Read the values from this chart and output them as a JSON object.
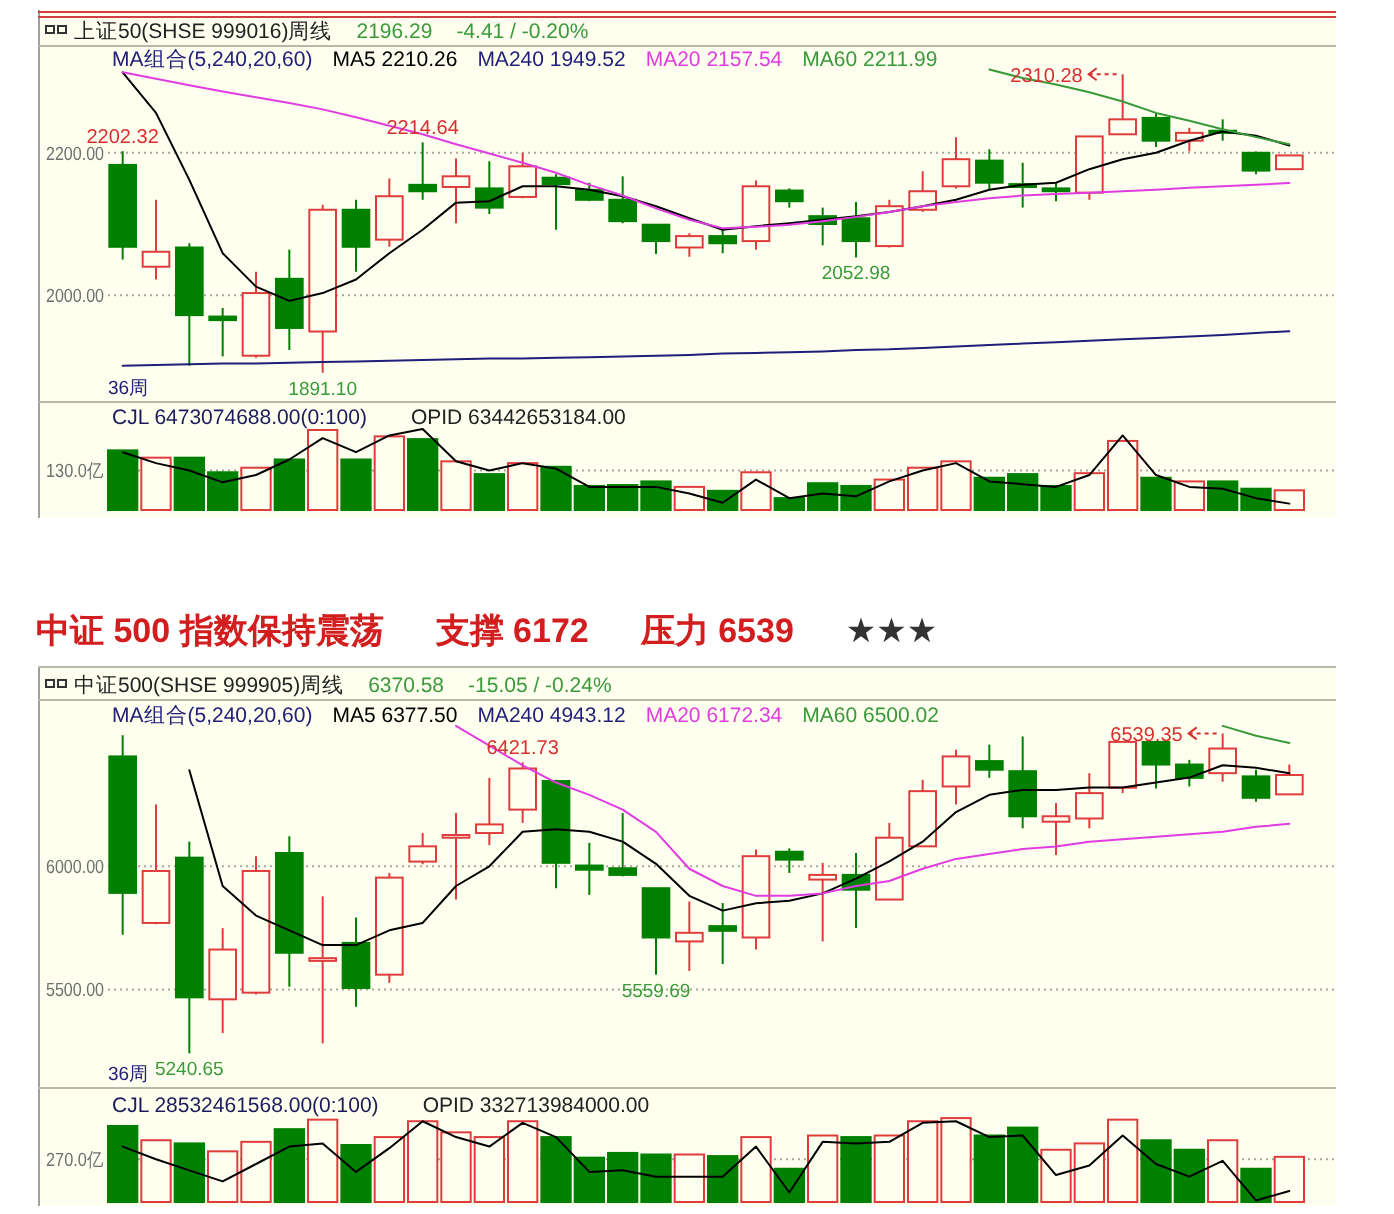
{
  "chart_data": [
    {
      "type": "candlestick",
      "title": "上证50(SHSE 999016)周线",
      "categories": [
        null,
        null,
        null,
        null,
        null,
        null,
        null,
        null,
        null,
        null,
        null,
        null,
        null,
        null,
        null,
        null,
        null,
        null,
        null,
        null,
        null,
        null,
        null,
        null,
        null,
        null,
        null,
        null,
        null,
        null,
        null,
        null,
        null,
        null,
        null,
        null
      ],
      "ohlc": [
        [
          2183,
          2202.32,
          2050,
          2068
        ],
        [
          2040,
          2134,
          2022,
          2061
        ],
        [
          2067,
          2073,
          1901,
          1972
        ],
        [
          1970,
          1982,
          1914,
          1965
        ],
        [
          1915,
          2033,
          1912,
          2003
        ],
        [
          2023,
          2064,
          1923,
          1954
        ],
        [
          1949,
          2127,
          1891.1,
          2120
        ],
        [
          2120,
          2134,
          2033,
          2068
        ],
        [
          2078,
          2164,
          2068,
          2139
        ],
        [
          2155,
          2214.64,
          2134,
          2146
        ],
        [
          2152,
          2192,
          2101,
          2167
        ],
        [
          2150,
          2188,
          2114,
          2123
        ],
        [
          2138,
          2200,
          2136,
          2181
        ],
        [
          2165,
          2170,
          2092,
          2156
        ],
        [
          2148,
          2158,
          2132,
          2134
        ],
        [
          2134,
          2167,
          2101,
          2104
        ],
        [
          2099,
          2099,
          2058,
          2076
        ],
        [
          2067,
          2087,
          2054,
          2083
        ],
        [
          2083,
          2092,
          2059,
          2073
        ],
        [
          2076,
          2161,
          2064,
          2153
        ],
        [
          2147,
          2150,
          2123,
          2132
        ],
        [
          2111,
          2123,
          2070,
          2100
        ],
        [
          2108,
          2131,
          2052.98,
          2076
        ],
        [
          2069,
          2134,
          2067,
          2125
        ],
        [
          2120,
          2174,
          2117,
          2146
        ],
        [
          2153,
          2222,
          2150,
          2191
        ],
        [
          2189,
          2205,
          2148,
          2158
        ],
        [
          2156,
          2186,
          2123,
          2152
        ],
        [
          2150,
          2158,
          2132,
          2146
        ],
        [
          2144,
          2223,
          2134,
          2223
        ],
        [
          2226,
          2310.28,
          2226,
          2247
        ],
        [
          2249,
          2256,
          2208,
          2217
        ],
        [
          2217,
          2235,
          2202,
          2228
        ],
        [
          2231,
          2247,
          2217,
          2228
        ],
        [
          2200,
          2202,
          2170,
          2175
        ],
        [
          2177,
          2196.29,
          2177,
          2196.29
        ]
      ],
      "colors": [
        "#008000",
        "#e03c3c",
        "#008000",
        "#008000",
        "#e03c3c",
        "#008000",
        "#e03c3c",
        "#008000",
        "#e03c3c",
        "#008000",
        "#e03c3c",
        "#008000",
        "#e03c3c",
        "#008000",
        "#008000",
        "#008000",
        "#008000",
        "#e03c3c",
        "#008000",
        "#e03c3c",
        "#008000",
        "#008000",
        "#008000",
        "#e03c3c",
        "#e03c3c",
        "#e03c3c",
        "#008000",
        "#008000",
        "#008000",
        "#e03c3c",
        "#e03c3c",
        "#008000",
        "#e03c3c",
        "#008000",
        "#008000",
        "#e03c3c"
      ],
      "ylim": [
        1850,
        2350
      ],
      "yticks": [
        {
          "value": 2000,
          "label": "2000.00"
        },
        {
          "value": 2200,
          "label": "2200.00"
        }
      ],
      "grid": "y",
      "tick_labels": "y",
      "legend": "top left",
      "legend_title": "MA组合(5,240,20,60)",
      "series": [
        {
          "type": "line",
          "name": "MA5 2210.26",
          "color": "#000000",
          "values": [
            2313,
            2256,
            2162,
            2059,
            2012,
            1992,
            2003,
            2022,
            2059,
            2092,
            2130,
            2132,
            2153,
            2153,
            2148,
            2139,
            2125,
            2108,
            2092,
            2097,
            2101,
            2106,
            2111,
            2117,
            2125,
            2134,
            2148,
            2155,
            2158,
            2177,
            2191,
            2200,
            2217,
            2230,
            2224,
            2210.26
          ]
        },
        {
          "type": "line",
          "name": "MA240 1949.52",
          "color": "#1f1f7a",
          "values": [
            1901,
            1902,
            1903,
            1904,
            1904,
            1905,
            1906,
            1907,
            1908,
            1909,
            1910,
            1911,
            1911,
            1912,
            1913,
            1914,
            1915,
            1916,
            1918,
            1919,
            1920,
            1921,
            1923,
            1924,
            1926,
            1928,
            1930,
            1932,
            1934,
            1936,
            1938,
            1940,
            1942,
            1944,
            1947,
            1949.52
          ]
        },
        {
          "type": "line",
          "name": "MA20 2157.54",
          "color": "#e03ce0",
          "values": [
            2313,
            2304,
            2295,
            2286,
            2278,
            2270,
            2261,
            2250,
            2238,
            2226,
            2212,
            2199,
            2186,
            2172,
            2155,
            2140,
            2122,
            2106,
            2094,
            2096,
            2099,
            2104,
            2110,
            2117,
            2125,
            2131,
            2136,
            2140,
            2142,
            2144,
            2146,
            2148,
            2151,
            2153,
            2155,
            2157.54
          ]
        },
        {
          "type": "line",
          "name": "MA60 2211.99",
          "color": "#3a9a3a",
          "values": [
            null,
            null,
            null,
            null,
            null,
            null,
            null,
            null,
            null,
            null,
            null,
            null,
            null,
            null,
            null,
            null,
            null,
            null,
            null,
            null,
            null,
            null,
            null,
            null,
            null,
            null,
            2317,
            2305,
            2296,
            2285,
            2272,
            2256,
            2245,
            2233,
            2222,
            2211.99
          ]
        }
      ],
      "annotations": [
        "2196.29",
        "-4.41 / -0.20%",
        "36周",
        {
          "text": "2202.32",
          "y": 2202.32
        },
        {
          "text": "2214.64",
          "y": 2214.64
        },
        {
          "text": "1891.10",
          "y": 1891.1
        },
        {
          "text": "2052.98",
          "y": 2052.98
        },
        {
          "text": "2310.28",
          "y": 2310.28
        }
      ]
    },
    {
      "type": "bar",
      "categories": [
        null,
        null,
        null,
        null,
        null,
        null,
        null,
        null,
        null,
        null,
        null,
        null,
        null,
        null,
        null,
        null,
        null,
        null,
        null,
        null,
        null,
        null,
        null,
        null,
        null,
        null,
        null,
        null,
        null,
        null,
        null,
        null,
        null,
        null,
        null,
        null
      ],
      "values": [
        196,
        172,
        172,
        124,
        139,
        166,
        263,
        166,
        242,
        233,
        160,
        118,
        154,
        142,
        79,
        82,
        94,
        76,
        63,
        124,
        39,
        88,
        79,
        100,
        139,
        160,
        106,
        118,
        79,
        121,
        227,
        106,
        94,
        94,
        70,
        64.73
      ],
      "colors": [
        "#008000",
        "#e03c3c",
        "#008000",
        "#008000",
        "#e03c3c",
        "#008000",
        "#e03c3c",
        "#008000",
        "#e03c3c",
        "#008000",
        "#e03c3c",
        "#008000",
        "#e03c3c",
        "#008000",
        "#008000",
        "#008000",
        "#008000",
        "#e03c3c",
        "#008000",
        "#e03c3c",
        "#008000",
        "#008000",
        "#008000",
        "#e03c3c",
        "#e03c3c",
        "#e03c3c",
        "#008000",
        "#008000",
        "#008000",
        "#e03c3c",
        "#e03c3c",
        "#008000",
        "#e03c3c",
        "#008000",
        "#008000",
        "#e03c3c"
      ],
      "ylim": [
        0,
        355
      ],
      "yticks": [
        {
          "value": 130,
          "label": "130.0亿"
        }
      ],
      "grid": "y",
      "tick_labels": "y",
      "series": [
        {
          "type": "line",
          "color": "#000000",
          "values": [
            190,
            154,
            130,
            91,
            115,
            166,
            236,
            190,
            245,
            266,
            160,
            130,
            154,
            136,
            76,
            76,
            76,
            54,
            24,
            100,
            39,
            54,
            45,
            94,
            130,
            154,
            94,
            85,
            76,
            115,
            245,
            115,
            76,
            70,
            39,
            21
          ]
        }
      ],
      "annotations": [
        "CJL 6473074688.00(0:100)",
        "OPID 63442653184.00"
      ]
    },
    {
      "type": "candlestick",
      "title": "中证 500 指数保持震荡",
      "subtitle": "中证500(SHSE 999905)周线",
      "categories": [
        null,
        null,
        null,
        null,
        null,
        null,
        null,
        null,
        null,
        null,
        null,
        null,
        null,
        null,
        null,
        null,
        null,
        null,
        null,
        null,
        null,
        null,
        null,
        null,
        null,
        null,
        null,
        null,
        null,
        null,
        null,
        null,
        null,
        null,
        null,
        null
      ],
      "ohlc": [
        [
          6446,
          6532,
          5722,
          5892
        ],
        [
          5770,
          6251,
          5765,
          5981
        ],
        [
          6035,
          6100,
          5240.65,
          5468
        ],
        [
          5460,
          5749,
          5323,
          5662
        ],
        [
          5487,
          6041,
          5480,
          5981
        ],
        [
          6054,
          6122,
          5511,
          5649
        ],
        [
          5616,
          5878,
          5281,
          5627
        ],
        [
          5689,
          5792,
          5430,
          5506
        ],
        [
          5560,
          5973,
          5527,
          5954
        ],
        [
          6019,
          6135,
          6008,
          6081
        ],
        [
          6116,
          6216,
          5865,
          6127
        ],
        [
          6135,
          6359,
          6086,
          6170
        ],
        [
          6230,
          6421.73,
          6176,
          6397
        ],
        [
          6346,
          6351,
          5911,
          6014
        ],
        [
          6003,
          6095,
          5884,
          5986
        ],
        [
          5992,
          6216,
          5959,
          5965
        ],
        [
          5911,
          5911,
          5559.69,
          5711
        ],
        [
          5695,
          5857,
          5575,
          5730
        ],
        [
          5757,
          5851,
          5603,
          5738
        ],
        [
          5711,
          6068,
          5662,
          6041
        ],
        [
          6059,
          6073,
          5973,
          6027
        ],
        [
          5946,
          6014,
          5695,
          5965
        ],
        [
          5965,
          6054,
          5749,
          5905
        ],
        [
          5865,
          6176,
          5865,
          6116
        ],
        [
          6081,
          6351,
          6081,
          6305
        ],
        [
          6324,
          6473,
          6251,
          6446
        ],
        [
          6427,
          6494,
          6359,
          6392
        ],
        [
          6386,
          6527,
          6154,
          6203
        ],
        [
          6181,
          6257,
          6046,
          6203
        ],
        [
          6194,
          6378,
          6154,
          6297
        ],
        [
          6319,
          6505,
          6297,
          6505
        ],
        [
          6505,
          6505,
          6316,
          6413
        ],
        [
          6413,
          6432,
          6324,
          6359
        ],
        [
          6378,
          6539.35,
          6343,
          6478
        ],
        [
          6365,
          6392,
          6262,
          6278
        ],
        [
          6292,
          6413,
          6292,
          6370.58
        ]
      ],
      "colors": [
        "#008000",
        "#e03c3c",
        "#008000",
        "#e03c3c",
        "#e03c3c",
        "#008000",
        "#e03c3c",
        "#008000",
        "#e03c3c",
        "#e03c3c",
        "#e03c3c",
        "#e03c3c",
        "#e03c3c",
        "#008000",
        "#008000",
        "#008000",
        "#008000",
        "#e03c3c",
        "#008000",
        "#e03c3c",
        "#008000",
        "#e03c3c",
        "#008000",
        "#e03c3c",
        "#e03c3c",
        "#e03c3c",
        "#008000",
        "#008000",
        "#e03c3c",
        "#e03c3c",
        "#e03c3c",
        "#008000",
        "#008000",
        "#e03c3c",
        "#008000",
        "#e03c3c"
      ],
      "ylim": [
        5100,
        6675
      ],
      "yticks": [
        {
          "value": 5500,
          "label": "5500.00"
        },
        {
          "value": 6000,
          "label": "6000.00"
        }
      ],
      "grid": "y",
      "tick_labels": "y",
      "legend": "top left",
      "legend_title": "MA组合(5,240,20,60)",
      "series": [
        {
          "type": "line",
          "name": "MA5 6377.50",
          "color": "#000000",
          "values": [
            null,
            null,
            6390,
            5920,
            5800,
            5740,
            5680,
            5680,
            5740,
            5770,
            5920,
            6000,
            6140,
            6150,
            6140,
            6100,
            6010,
            5880,
            5820,
            5850,
            5860,
            5890,
            5950,
            6020,
            6100,
            6220,
            6290,
            6310,
            6310,
            6320,
            6320,
            6340,
            6360,
            6410,
            6400,
            6377.5
          ]
        },
        {
          "type": "line",
          "name": "MA240 4943.12",
          "color": "#1f1f7a",
          "values": [
            null,
            null,
            null,
            null,
            null,
            null,
            null,
            null,
            null,
            null,
            null,
            null,
            null,
            null,
            null,
            null,
            null,
            null,
            null,
            null,
            null,
            null,
            null,
            null,
            null,
            null,
            null,
            null,
            null,
            null,
            null,
            null,
            null,
            null,
            null,
            null
          ]
        },
        {
          "type": "line",
          "name": "MA20 6172.34",
          "color": "#e03ce0",
          "values": [
            null,
            null,
            null,
            null,
            null,
            null,
            null,
            null,
            null,
            null,
            6570,
            6490,
            6410,
            6340,
            6290,
            6230,
            6140,
            5990,
            5920,
            5880,
            5880,
            5890,
            5920,
            5940,
            5990,
            6030,
            6050,
            6070,
            6080,
            6100,
            6110,
            6120,
            6130,
            6140,
            6160,
            6172.34
          ]
        },
        {
          "type": "line",
          "name": "MA60 6500.02",
          "color": "#3a9a3a",
          "values": [
            null,
            null,
            null,
            null,
            null,
            null,
            null,
            null,
            null,
            null,
            null,
            null,
            null,
            null,
            null,
            null,
            null,
            null,
            null,
            null,
            null,
            null,
            null,
            null,
            null,
            null,
            null,
            null,
            null,
            null,
            null,
            null,
            null,
            6570,
            6530,
            6500.02
          ]
        }
      ],
      "annotations": [
        "6370.58",
        "-15.05 / -0.24%",
        "36周",
        "支撑 6172",
        "压力 6539",
        "★★★",
        {
          "text": "6421.73",
          "y": 6421.73
        },
        {
          "text": "5559.69",
          "y": 5559.69
        },
        {
          "text": "5240.65",
          "y": 5240.65
        },
        {
          "text": "6539.35",
          "y": 6539.35
        }
      ]
    },
    {
      "type": "bar",
      "categories": [
        null,
        null,
        null,
        null,
        null,
        null,
        null,
        null,
        null,
        null,
        null,
        null,
        null,
        null,
        null,
        null,
        null,
        null,
        null,
        null,
        null,
        null,
        null,
        null,
        null,
        null,
        null,
        null,
        null,
        null,
        null,
        null,
        null,
        null,
        null,
        null
      ],
      "values": [
        480,
        390,
        370,
        320,
        380,
        460,
        520,
        360,
        410,
        510,
        440,
        410,
        510,
        410,
        280,
        310,
        300,
        300,
        290,
        410,
        210,
        420,
        410,
        420,
        510,
        530,
        420,
        470,
        330,
        370,
        520,
        390,
        330,
        390,
        210,
        285.32
      ],
      "colors": [
        "#008000",
        "#e03c3c",
        "#008000",
        "#e03c3c",
        "#e03c3c",
        "#008000",
        "#e03c3c",
        "#008000",
        "#e03c3c",
        "#e03c3c",
        "#e03c3c",
        "#e03c3c",
        "#e03c3c",
        "#008000",
        "#008000",
        "#008000",
        "#008000",
        "#e03c3c",
        "#008000",
        "#e03c3c",
        "#008000",
        "#e03c3c",
        "#008000",
        "#e03c3c",
        "#e03c3c",
        "#e03c3c",
        "#008000",
        "#008000",
        "#e03c3c",
        "#e03c3c",
        "#e03c3c",
        "#008000",
        "#008000",
        "#e03c3c",
        "#008000",
        "#e03c3c"
      ],
      "ylim": [
        0,
        720
      ],
      "yticks": [
        {
          "value": 270,
          "label": "270.0亿"
        }
      ],
      "grid": "y",
      "tick_labels": "y",
      "series": [
        {
          "type": "line",
          "color": "#000000",
          "values": [
            350,
            270,
            200,
            130,
            240,
            350,
            370,
            190,
            340,
            510,
            410,
            350,
            500,
            410,
            190,
            200,
            160,
            160,
            160,
            350,
            60,
            380,
            370,
            380,
            500,
            510,
            410,
            420,
            170,
            230,
            420,
            240,
            160,
            260,
            10,
            70
          ]
        }
      ],
      "annotations": [
        "CJL 28532461568.00(0:100)",
        "OPID 332713984000.00"
      ]
    }
  ]
}
